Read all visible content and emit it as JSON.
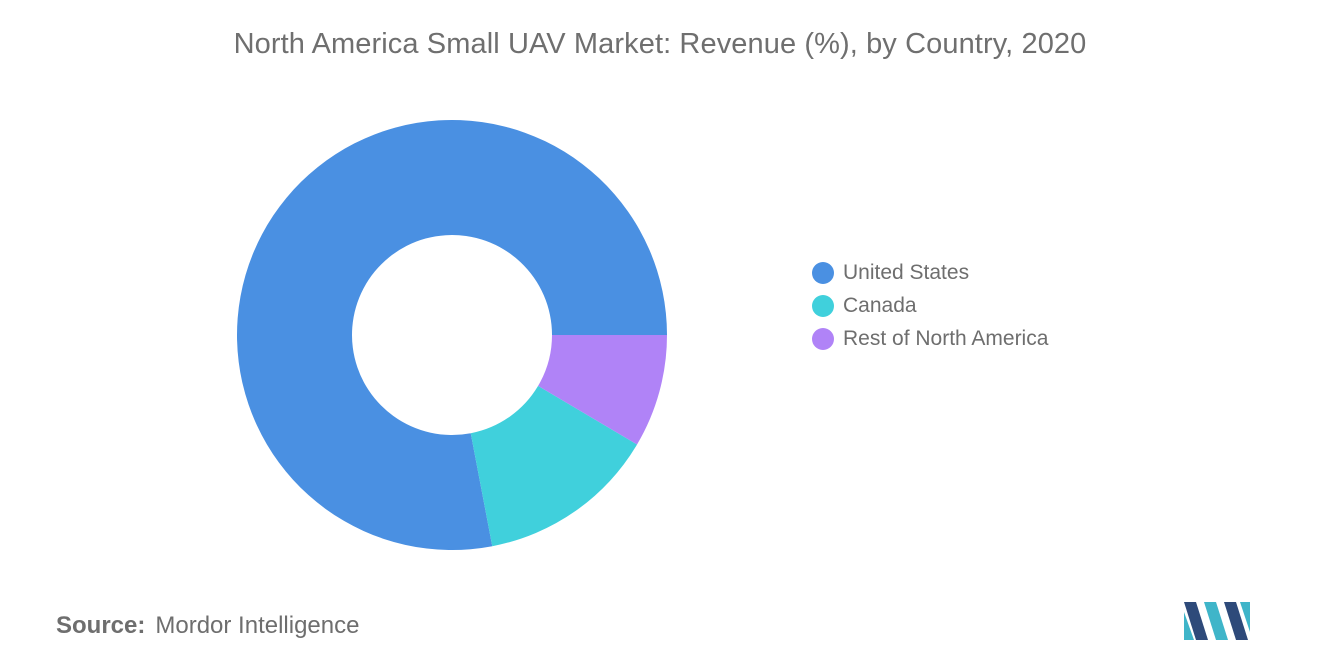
{
  "chart_data": {
    "type": "pie",
    "variant": "donut",
    "title": "North America Small UAV Market: Revenue (%), by Country, 2020",
    "categories": [
      "United States",
      "Canada",
      "Rest of North America"
    ],
    "values": [
      78,
      13.5,
      8.5
    ],
    "colors": [
      "#4a90e2",
      "#40d0dc",
      "#b083f7"
    ],
    "start_angle_deg": 90,
    "direction": "clockwise",
    "legend_position": "right"
  },
  "footer": {
    "source_label": "Source:",
    "source_value": "Mordor Intelligence"
  },
  "brand": {
    "logo_icon": "mordor-intelligence-logo-icon",
    "logo_colors": [
      "#2e4a7a",
      "#3fb5c9"
    ]
  }
}
